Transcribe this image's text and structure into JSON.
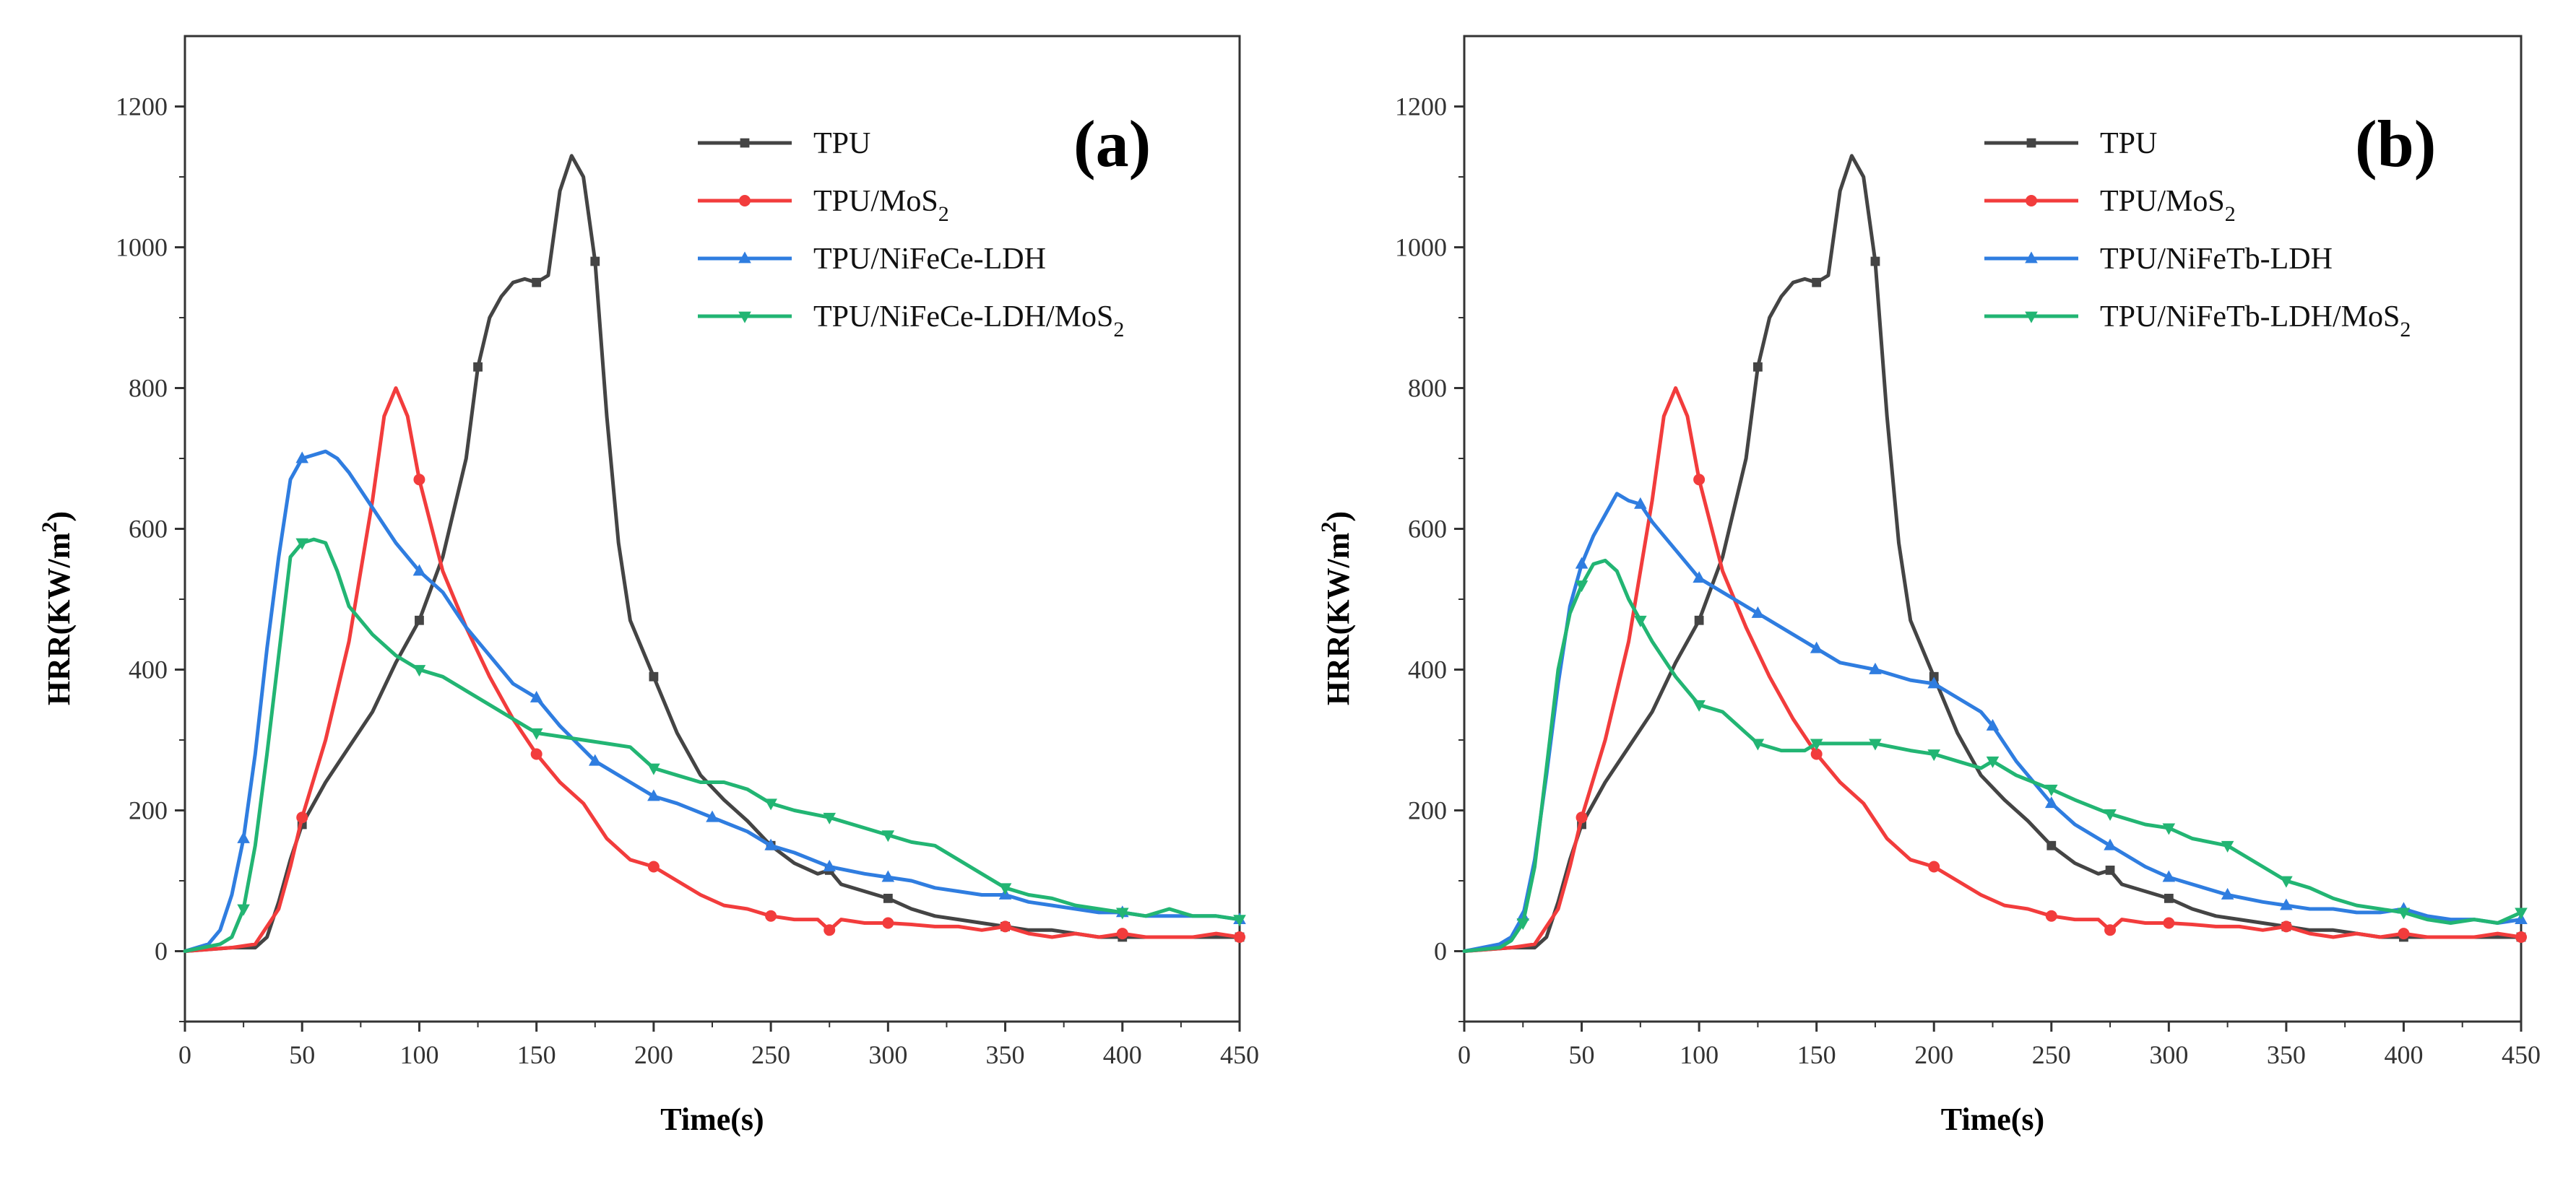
{
  "chart_data": [
    {
      "type": "line",
      "panel_label": "(a)",
      "xlabel": "Time(s)",
      "ylabel_main": "HRR(KW/m",
      "ylabel_sup": "2",
      "ylabel_close": ")",
      "xlim": [
        0,
        450
      ],
      "ylim": [
        -100,
        1300
      ],
      "xticks": [
        0,
        50,
        100,
        150,
        200,
        250,
        300,
        350,
        400,
        450
      ],
      "yticks": [
        0,
        200,
        400,
        600,
        800,
        1000,
        1200
      ],
      "legend_position": "top-right",
      "series": [
        {
          "name": "TPU",
          "label_main": "TPU",
          "label_sub": "",
          "label_tail": "",
          "color": "#444444",
          "marker": "square",
          "x": [
            0,
            20,
            30,
            35,
            40,
            45,
            50,
            60,
            70,
            80,
            90,
            100,
            110,
            120,
            125,
            130,
            135,
            140,
            145,
            150,
            155,
            160,
            165,
            170,
            175,
            180,
            185,
            190,
            200,
            210,
            220,
            230,
            240,
            250,
            260,
            270,
            275,
            280,
            290,
            300,
            310,
            320,
            330,
            340,
            350,
            360,
            370,
            380,
            390,
            400,
            410,
            420,
            430,
            440,
            450
          ],
          "y": [
            0,
            5,
            5,
            20,
            70,
            130,
            180,
            240,
            290,
            340,
            410,
            470,
            560,
            700,
            830,
            900,
            930,
            950,
            955,
            950,
            960,
            1080,
            1130,
            1100,
            980,
            760,
            580,
            470,
            390,
            310,
            250,
            215,
            185,
            150,
            125,
            110,
            115,
            95,
            85,
            75,
            60,
            50,
            45,
            40,
            35,
            30,
            30,
            25,
            20,
            20,
            20,
            20,
            20,
            20,
            20
          ]
        },
        {
          "name": "TPU/MoS2",
          "label_main": "TPU/MoS",
          "label_sub": "2",
          "label_tail": "",
          "color": "#f23c3c",
          "marker": "circle",
          "x": [
            0,
            20,
            30,
            40,
            45,
            50,
            60,
            70,
            80,
            85,
            90,
            95,
            100,
            110,
            120,
            130,
            140,
            150,
            160,
            170,
            180,
            190,
            200,
            210,
            220,
            230,
            240,
            250,
            260,
            270,
            275,
            280,
            290,
            300,
            310,
            320,
            330,
            340,
            350,
            360,
            370,
            380,
            390,
            400,
            410,
            420,
            430,
            440,
            450
          ],
          "y": [
            0,
            5,
            10,
            60,
            120,
            190,
            300,
            440,
            640,
            760,
            800,
            760,
            670,
            540,
            460,
            390,
            330,
            280,
            240,
            210,
            160,
            130,
            120,
            100,
            80,
            65,
            60,
            50,
            45,
            45,
            30,
            45,
            40,
            40,
            38,
            35,
            35,
            30,
            35,
            25,
            20,
            25,
            20,
            25,
            20,
            20,
            20,
            25,
            20
          ]
        },
        {
          "name": "TPU/NiFeCe-LDH",
          "label_main": "TPU/NiFeCe-LDH",
          "label_sub": "",
          "label_tail": "",
          "color": "#2f7de0",
          "marker": "triangle-up",
          "x": [
            0,
            10,
            15,
            20,
            25,
            30,
            35,
            40,
            45,
            50,
            55,
            60,
            65,
            70,
            80,
            90,
            100,
            110,
            120,
            130,
            140,
            150,
            160,
            175,
            190,
            200,
            210,
            225,
            240,
            250,
            260,
            275,
            290,
            300,
            310,
            320,
            330,
            340,
            350,
            360,
            370,
            380,
            390,
            400,
            410,
            420,
            430,
            440,
            450
          ],
          "y": [
            0,
            10,
            30,
            80,
            160,
            280,
            430,
            560,
            670,
            700,
            705,
            710,
            700,
            680,
            630,
            580,
            540,
            510,
            460,
            420,
            380,
            360,
            320,
            270,
            240,
            220,
            210,
            190,
            170,
            150,
            140,
            120,
            110,
            105,
            100,
            90,
            85,
            80,
            80,
            70,
            65,
            60,
            55,
            55,
            50,
            50,
            50,
            50,
            45
          ]
        },
        {
          "name": "TPU/NiFeCe-LDH/MoS2",
          "label_main": "TPU/NiFeCe-LDH/MoS",
          "label_sub": "2",
          "label_tail": "",
          "color": "#22b573",
          "marker": "triangle-down",
          "x": [
            0,
            15,
            20,
            25,
            30,
            35,
            40,
            45,
            50,
            55,
            60,
            65,
            70,
            80,
            90,
            100,
            110,
            120,
            130,
            140,
            150,
            160,
            170,
            180,
            190,
            200,
            210,
            220,
            230,
            240,
            250,
            260,
            275,
            290,
            300,
            310,
            320,
            330,
            340,
            350,
            360,
            370,
            380,
            390,
            400,
            410,
            420,
            430,
            440,
            450
          ],
          "y": [
            0,
            10,
            20,
            60,
            150,
            280,
            420,
            560,
            580,
            585,
            580,
            540,
            490,
            450,
            420,
            400,
            390,
            370,
            350,
            330,
            310,
            305,
            300,
            295,
            290,
            260,
            250,
            240,
            240,
            230,
            210,
            200,
            190,
            175,
            165,
            155,
            150,
            130,
            110,
            90,
            80,
            75,
            65,
            60,
            55,
            50,
            60,
            50,
            50,
            45
          ]
        }
      ]
    },
    {
      "type": "line",
      "panel_label": "(b)",
      "xlabel": "Time(s)",
      "ylabel_main": "HRR(KW/m",
      "ylabel_sup": "2",
      "ylabel_close": ")",
      "xlim": [
        0,
        450
      ],
      "ylim": [
        -100,
        1300
      ],
      "xticks": [
        0,
        50,
        100,
        150,
        200,
        250,
        300,
        350,
        400,
        450
      ],
      "yticks": [
        0,
        200,
        400,
        600,
        800,
        1000,
        1200
      ],
      "legend_position": "top-right",
      "series": [
        {
          "name": "TPU",
          "label_main": "TPU",
          "label_sub": "",
          "label_tail": "",
          "color": "#444444",
          "marker": "square",
          "x": [
            0,
            20,
            30,
            35,
            40,
            45,
            50,
            60,
            70,
            80,
            90,
            100,
            110,
            120,
            125,
            130,
            135,
            140,
            145,
            150,
            155,
            160,
            165,
            170,
            175,
            180,
            185,
            190,
            200,
            210,
            220,
            230,
            240,
            250,
            260,
            270,
            275,
            280,
            290,
            300,
            310,
            320,
            330,
            340,
            350,
            360,
            370,
            380,
            390,
            400,
            410,
            420,
            430,
            440,
            450
          ],
          "y": [
            0,
            5,
            5,
            20,
            70,
            130,
            180,
            240,
            290,
            340,
            410,
            470,
            560,
            700,
            830,
            900,
            930,
            950,
            955,
            950,
            960,
            1080,
            1130,
            1100,
            980,
            760,
            580,
            470,
            390,
            310,
            250,
            215,
            185,
            150,
            125,
            110,
            115,
            95,
            85,
            75,
            60,
            50,
            45,
            40,
            35,
            30,
            30,
            25,
            20,
            20,
            20,
            20,
            20,
            20,
            20
          ]
        },
        {
          "name": "TPU/MoS2",
          "label_main": "TPU/MoS",
          "label_sub": "2",
          "label_tail": "",
          "color": "#f23c3c",
          "marker": "circle",
          "x": [
            0,
            20,
            30,
            40,
            45,
            50,
            60,
            70,
            80,
            85,
            90,
            95,
            100,
            110,
            120,
            130,
            140,
            150,
            160,
            170,
            180,
            190,
            200,
            210,
            220,
            230,
            240,
            250,
            260,
            270,
            275,
            280,
            290,
            300,
            310,
            320,
            330,
            340,
            350,
            360,
            370,
            380,
            390,
            400,
            410,
            420,
            430,
            440,
            450
          ],
          "y": [
            0,
            5,
            10,
            60,
            120,
            190,
            300,
            440,
            640,
            760,
            800,
            760,
            670,
            540,
            460,
            390,
            330,
            280,
            240,
            210,
            160,
            130,
            120,
            100,
            80,
            65,
            60,
            50,
            45,
            45,
            30,
            45,
            40,
            40,
            38,
            35,
            35,
            30,
            35,
            25,
            20,
            25,
            20,
            25,
            20,
            20,
            20,
            25,
            20
          ]
        },
        {
          "name": "TPU/NiFeTb-LDH",
          "label_main": "TPU/NiFeTb-LDH",
          "label_sub": "",
          "label_tail": "",
          "color": "#2f7de0",
          "marker": "triangle-up",
          "x": [
            0,
            15,
            20,
            25,
            30,
            35,
            40,
            45,
            50,
            55,
            60,
            65,
            70,
            75,
            80,
            90,
            100,
            110,
            125,
            140,
            150,
            160,
            175,
            190,
            200,
            210,
            220,
            225,
            235,
            250,
            260,
            275,
            290,
            300,
            310,
            325,
            340,
            350,
            360,
            370,
            380,
            390,
            400,
            410,
            420,
            430,
            440,
            450
          ],
          "y": [
            0,
            10,
            20,
            50,
            130,
            250,
            380,
            490,
            550,
            590,
            620,
            650,
            640,
            635,
            610,
            570,
            530,
            510,
            480,
            450,
            430,
            410,
            400,
            385,
            380,
            360,
            340,
            320,
            270,
            210,
            180,
            150,
            120,
            105,
            95,
            80,
            70,
            65,
            60,
            60,
            55,
            55,
            60,
            50,
            45,
            45,
            40,
            45
          ]
        },
        {
          "name": "TPU/NiFeTb-LDH/MoS2",
          "label_main": "TPU/NiFeTb-LDH/MoS",
          "label_sub": "2",
          "label_tail": "",
          "color": "#22b573",
          "marker": "triangle-down",
          "x": [
            0,
            15,
            20,
            25,
            30,
            35,
            40,
            45,
            50,
            55,
            60,
            65,
            70,
            75,
            80,
            90,
            100,
            110,
            120,
            125,
            135,
            145,
            150,
            160,
            175,
            190,
            200,
            210,
            220,
            225,
            235,
            250,
            260,
            275,
            290,
            300,
            310,
            325,
            340,
            350,
            360,
            370,
            380,
            390,
            400,
            410,
            420,
            430,
            440,
            450
          ],
          "y": [
            0,
            5,
            15,
            40,
            120,
            260,
            400,
            480,
            520,
            550,
            555,
            540,
            500,
            470,
            440,
            390,
            350,
            340,
            310,
            295,
            285,
            285,
            295,
            295,
            295,
            285,
            280,
            270,
            260,
            270,
            250,
            230,
            215,
            195,
            180,
            175,
            160,
            150,
            120,
            100,
            90,
            75,
            65,
            60,
            55,
            45,
            40,
            45,
            40,
            55
          ]
        }
      ]
    }
  ]
}
